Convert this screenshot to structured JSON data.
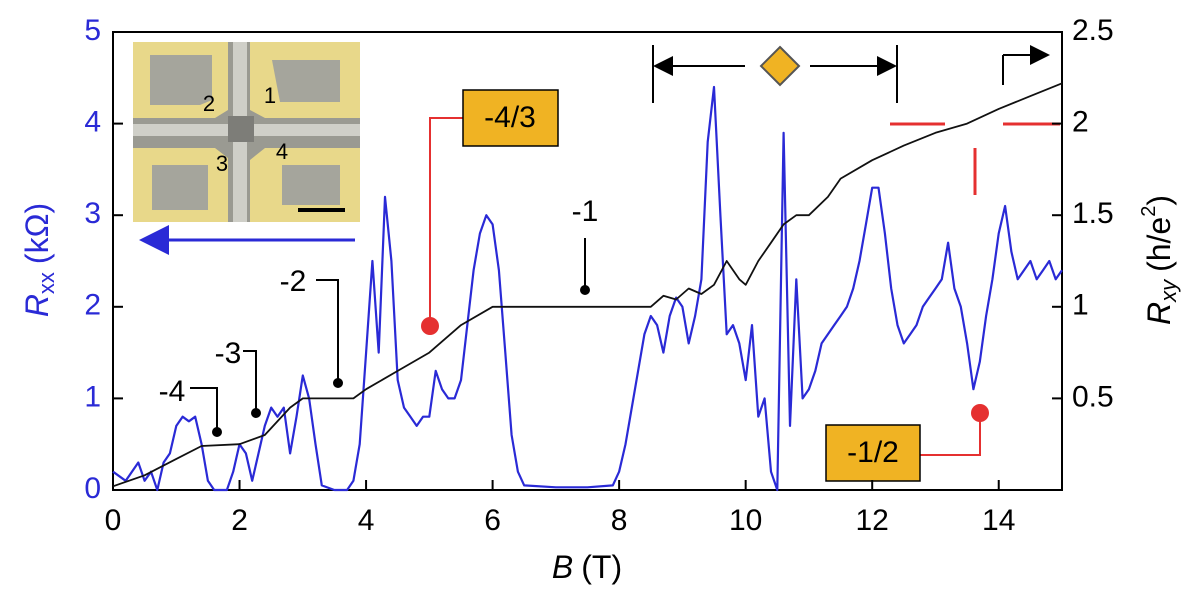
{
  "chart_data": {
    "type": "line",
    "xlabel": {
      "symbol": "B",
      "unit": "(T)"
    },
    "ylabel": {
      "symbol": "R",
      "subscript": "xx",
      "unit": "(kΩ)"
    },
    "y2label": {
      "symbol": "R",
      "subscript": "xy",
      "unit": "(h/e",
      "superscript": "2",
      "close": ")"
    },
    "xlim": [
      0,
      15
    ],
    "xticks": [
      0,
      2,
      4,
      6,
      8,
      10,
      12,
      14
    ],
    "ylim": [
      0,
      5
    ],
    "yticks": [
      0,
      1,
      2,
      3,
      4,
      5
    ],
    "y2lim": [
      0,
      2.5
    ],
    "y2ticks": [
      0.5,
      1,
      1.5,
      2,
      2.5
    ],
    "series": [
      {
        "color": "#2a2ad6",
        "axis": "y",
        "x": [
          0,
          0.2,
          0.4,
          0.5,
          0.6,
          0.7,
          0.8,
          0.9,
          1.0,
          1.1,
          1.2,
          1.3,
          1.4,
          1.5,
          1.6,
          1.8,
          1.9,
          2.0,
          2.1,
          2.2,
          2.3,
          2.4,
          2.5,
          2.6,
          2.7,
          2.8,
          2.9,
          3.0,
          3.1,
          3.2,
          3.3,
          3.5,
          3.7,
          3.8,
          3.9,
          4.0,
          4.1,
          4.2,
          4.3,
          4.4,
          4.5,
          4.6,
          4.7,
          4.8,
          4.9,
          5.0,
          5.1,
          5.2,
          5.3,
          5.4,
          5.5,
          5.6,
          5.7,
          5.8,
          5.9,
          6.0,
          6.1,
          6.2,
          6.3,
          6.4,
          6.5,
          7.0,
          7.5,
          7.9,
          8.0,
          8.1,
          8.2,
          8.3,
          8.4,
          8.5,
          8.6,
          8.7,
          8.8,
          8.9,
          9.0,
          9.1,
          9.2,
          9.3,
          9.4,
          9.5,
          9.6,
          9.7,
          9.8,
          9.9,
          10.0,
          10.1,
          10.2,
          10.3,
          10.4,
          10.5,
          10.6,
          10.7,
          10.8,
          10.9,
          11.0,
          11.1,
          11.2,
          11.3,
          11.4,
          11.5,
          11.6,
          11.7,
          11.8,
          11.9,
          12.0,
          12.1,
          12.2,
          12.3,
          12.4,
          12.5,
          12.6,
          12.7,
          12.8,
          12.9,
          13.0,
          13.1,
          13.2,
          13.3,
          13.4,
          13.5,
          13.6,
          13.7,
          13.8,
          13.9,
          14.0,
          14.1,
          14.2,
          14.3,
          14.4,
          14.5,
          14.6,
          14.7,
          14.8,
          14.9,
          15.0
        ],
        "values": [
          0.2,
          0.1,
          0.3,
          0.1,
          0.2,
          0.0,
          0.3,
          0.4,
          0.7,
          0.8,
          0.75,
          0.8,
          0.5,
          0.1,
          0.0,
          0.0,
          0.2,
          0.5,
          0.4,
          0.1,
          0.4,
          0.7,
          0.9,
          0.8,
          0.9,
          0.4,
          0.8,
          1.25,
          1.0,
          0.5,
          0.05,
          0.0,
          0.0,
          0.1,
          0.5,
          1.5,
          2.5,
          1.5,
          3.2,
          2.5,
          1.2,
          0.9,
          0.8,
          0.7,
          0.8,
          0.8,
          1.3,
          1.1,
          1.0,
          1.0,
          1.2,
          1.8,
          2.4,
          2.8,
          3.0,
          2.9,
          2.4,
          1.5,
          0.6,
          0.2,
          0.05,
          0.03,
          0.03,
          0.05,
          0.2,
          0.5,
          0.9,
          1.3,
          1.7,
          1.9,
          1.8,
          1.5,
          1.9,
          2.1,
          2.0,
          1.6,
          1.9,
          2.3,
          3.8,
          4.4,
          3.0,
          1.7,
          1.8,
          1.6,
          1.2,
          1.8,
          0.8,
          1.0,
          0.2,
          0.0,
          3.9,
          0.7,
          2.3,
          1.0,
          1.1,
          1.3,
          1.6,
          1.7,
          1.8,
          1.9,
          2.0,
          2.2,
          2.5,
          2.9,
          3.3,
          3.3,
          2.8,
          2.2,
          1.8,
          1.6,
          1.7,
          1.8,
          2.0,
          2.1,
          2.2,
          2.3,
          2.7,
          2.2,
          2.0,
          1.6,
          1.1,
          1.4,
          1.9,
          2.3,
          2.8,
          3.1,
          2.6,
          2.3,
          2.4,
          2.5,
          2.3,
          2.4,
          2.5,
          2.3,
          2.4
        ]
      },
      {
        "color": "#111111",
        "axis": "y2",
        "x": [
          0,
          0.5,
          1.0,
          1.4,
          2.0,
          2.4,
          2.8,
          3.0,
          3.8,
          4.0,
          4.5,
          5.0,
          5.5,
          6.0,
          8.5,
          8.7,
          8.9,
          9.1,
          9.3,
          9.5,
          9.7,
          9.9,
          10.0,
          10.2,
          10.4,
          10.6,
          10.8,
          11.0,
          11.3,
          11.5,
          12.0,
          12.5,
          13.0,
          13.5,
          14.0,
          14.5,
          15.0
        ],
        "values": [
          0.02,
          0.08,
          0.17,
          0.24,
          0.25,
          0.3,
          0.45,
          0.5,
          0.5,
          0.55,
          0.65,
          0.75,
          0.9,
          1.0,
          1.0,
          1.06,
          1.04,
          1.1,
          1.07,
          1.12,
          1.25,
          1.15,
          1.12,
          1.25,
          1.35,
          1.45,
          1.5,
          1.5,
          1.6,
          1.7,
          1.8,
          1.88,
          1.95,
          2.0,
          2.08,
          2.15,
          2.22
        ]
      }
    ],
    "annotations": [
      {
        "text": "-4"
      },
      {
        "text": "-3"
      },
      {
        "text": "-2"
      },
      {
        "text": "-1"
      },
      {
        "text": "-4/3"
      },
      {
        "text": "-1/2"
      }
    ],
    "inset_labels": [
      "1",
      "2",
      "3",
      "4"
    ]
  }
}
